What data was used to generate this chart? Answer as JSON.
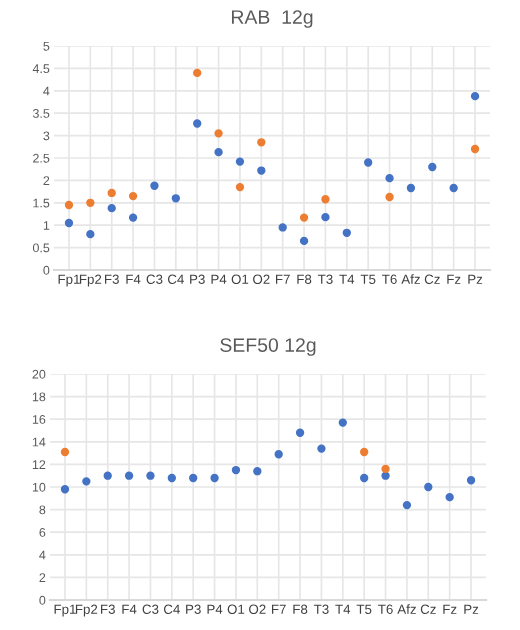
{
  "chart_data": [
    {
      "type": "scatter",
      "title": "RAB  12g",
      "categories": [
        "Fp1",
        "Fp2",
        "F3",
        "F4",
        "C3",
        "C4",
        "P3",
        "P4",
        "O1",
        "O2",
        "F7",
        "F8",
        "T3",
        "T4",
        "T5",
        "T6",
        "Afz",
        "Cz",
        "Fz",
        "Pz"
      ],
      "series": [
        {
          "color": "#4472c4",
          "values": [
            1.05,
            0.8,
            1.38,
            1.17,
            1.88,
            1.6,
            3.27,
            2.63,
            2.42,
            2.22,
            0.95,
            0.65,
            1.18,
            0.83,
            2.4,
            2.05,
            1.83,
            2.3,
            1.83,
            3.88
          ]
        },
        {
          "color": "#ed7d31",
          "values": [
            1.45,
            1.5,
            1.72,
            1.65,
            null,
            null,
            4.4,
            3.05,
            1.85,
            2.85,
            null,
            1.17,
            1.58,
            null,
            null,
            1.63,
            null,
            null,
            null,
            2.7
          ]
        }
      ],
      "ylim": [
        0,
        5
      ],
      "yticks": [
        0,
        0.5,
        1,
        1.5,
        2,
        2.5,
        3,
        3.5,
        4,
        4.5,
        5
      ],
      "grid": true,
      "marker": "circle"
    },
    {
      "type": "scatter",
      "title": "SEF50 12g",
      "categories": [
        "Fp1",
        "Fp2",
        "F3",
        "F4",
        "C3",
        "C4",
        "P3",
        "P4",
        "O1",
        "O2",
        "F7",
        "F8",
        "T3",
        "T4",
        "T5",
        "T6",
        "Afz",
        "Cz",
        "Fz",
        "Pz"
      ],
      "series": [
        {
          "color": "#4472c4",
          "values": [
            9.8,
            10.5,
            11,
            11,
            11,
            10.8,
            10.8,
            10.8,
            11.5,
            11.4,
            12.9,
            14.8,
            13.4,
            15.7,
            10.8,
            11,
            8.4,
            10,
            9.1,
            10.6
          ]
        },
        {
          "color": "#ed7d31",
          "values": [
            13.1,
            null,
            null,
            null,
            null,
            null,
            null,
            null,
            null,
            null,
            null,
            null,
            null,
            null,
            13.1,
            11.6,
            null,
            null,
            null,
            null
          ]
        }
      ],
      "ylim": [
        0,
        20
      ],
      "yticks": [
        0,
        2,
        4,
        6,
        8,
        10,
        12,
        14,
        16,
        18,
        20
      ],
      "grid": true,
      "marker": "circle"
    }
  ]
}
